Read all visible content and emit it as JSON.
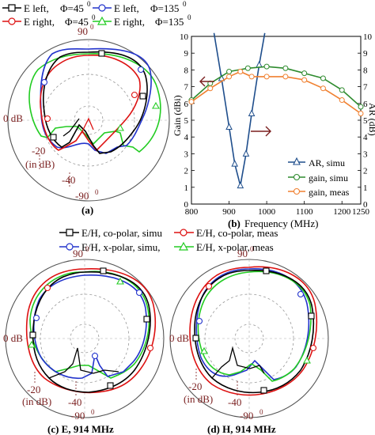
{
  "polar_common": {
    "zero_db": "0 dB",
    "minus20": "-20",
    "minus40": "-40",
    "in_db": "(in dB)",
    "angle_90": "90",
    "angle_m90": "-90",
    "sup0": "0"
  },
  "legend_a": {
    "e_left_45": "E left,",
    "e_left_135": "E left,",
    "e_right_45": "E right,",
    "e_right_135": "E right,",
    "phi_45": "Φ=45",
    "phi_135": "Φ=135",
    "sup0": "0"
  },
  "legend_cd": {
    "co_simu": "E/H, co-polar, simu",
    "co_meas": "E/H, co-polar, meas",
    "x_simu": "E/H, x-polar, simu,",
    "x_meas": "E/H, x-polar, meas"
  },
  "captions": {
    "a": "(a)",
    "b_label": "(b)",
    "b_text": "Frequency (MHz)",
    "c": "(c) E, 914 MHz",
    "d": "(d)  H, 914 MHz"
  },
  "chart_data": [
    {
      "panel": "a",
      "type": "polar",
      "radial_ticks": [
        "0 dB",
        "-20",
        "-40"
      ],
      "series": [
        {
          "name": "E left, Φ=45°",
          "color": "#000000",
          "marker": "square"
        },
        {
          "name": "E left, Φ=135°",
          "color": "#2233cc",
          "marker": "circle"
        },
        {
          "name": "E right, Φ=45°",
          "color": "#dd1111",
          "marker": "circle"
        },
        {
          "name": "E right, Φ=135°",
          "color": "#22cc22",
          "marker": "triangle"
        }
      ]
    },
    {
      "panel": "b",
      "type": "line",
      "xlabel": "Frequency (MHz)",
      "ylabel": "Gain (dBi)",
      "ylabel_right": "AR (dB)",
      "xlim": [
        800,
        1250
      ],
      "ylim": [
        0,
        10
      ],
      "x_ticks": [
        800,
        900,
        1000,
        1100,
        1200,
        1250
      ],
      "y_ticks": [
        0,
        1,
        2,
        3,
        4,
        5,
        6,
        7,
        8,
        9,
        10
      ],
      "series": [
        {
          "name": "AR, simu",
          "color": "#1f4e8c",
          "marker": "triangle",
          "x": [
            860,
            880,
            900,
            915,
            930,
            945,
            960,
            980,
            995
          ],
          "y": [
            10.2,
            7.5,
            4.6,
            2.4,
            1.1,
            3.0,
            5.4,
            8.3,
            10.2
          ]
        },
        {
          "name": "gain, simu",
          "color": "#2e8b2e",
          "marker": "circle",
          "x": [
            800,
            850,
            900,
            950,
            1000,
            1050,
            1100,
            1150,
            1200,
            1250
          ],
          "y": [
            6.2,
            7.2,
            7.9,
            8.1,
            8.2,
            8.1,
            7.8,
            7.5,
            6.8,
            5.8
          ]
        },
        {
          "name": "gain, meas",
          "color": "#f08030",
          "marker": "circle",
          "x": [
            800,
            850,
            900,
            930,
            960,
            1000,
            1050,
            1100,
            1150,
            1200,
            1250
          ],
          "y": [
            6.1,
            6.9,
            7.6,
            7.9,
            7.6,
            7.6,
            7.6,
            7.4,
            6.9,
            6.2,
            5.4
          ]
        }
      ]
    },
    {
      "panel": "c",
      "type": "polar",
      "caption": "E, 914 MHz",
      "radial_ticks": [
        "0 dB",
        "-20",
        "-40"
      ]
    },
    {
      "panel": "d",
      "type": "polar",
      "caption": "H, 914 MHz",
      "radial_ticks": [
        "0 dB",
        "-20",
        "-40"
      ]
    }
  ]
}
